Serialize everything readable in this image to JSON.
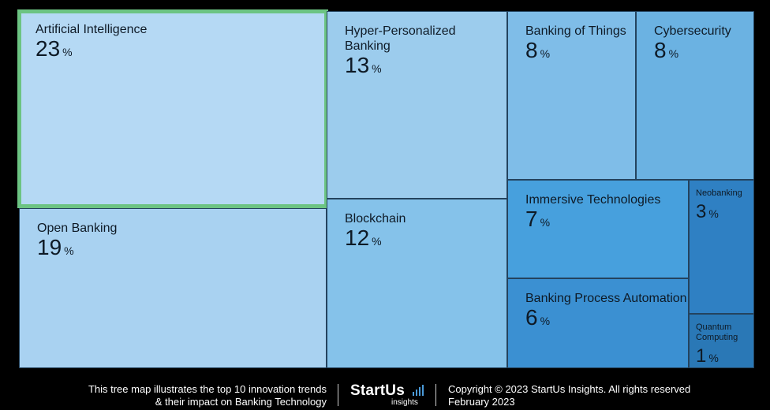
{
  "chart_data": {
    "type": "treemap",
    "unit": "%",
    "items": [
      {
        "name": "Artificial Intelligence",
        "value": 23,
        "color": "#b5d9f4",
        "highlight": true
      },
      {
        "name": "Open Banking",
        "value": 19,
        "color": "#a9d2f1"
      },
      {
        "name": "Hyper-Personalized\nBanking",
        "value": 13,
        "color": "#9ccced"
      },
      {
        "name": "Blockchain",
        "value": 12,
        "color": "#85c2ea"
      },
      {
        "name": "Banking of Things",
        "value": 8,
        "color": "#7fbde8"
      },
      {
        "name": "Cybersecurity",
        "value": 8,
        "color": "#6bb2e2"
      },
      {
        "name": "Immersive Technologies",
        "value": 7,
        "color": "#47a0dd"
      },
      {
        "name": "Banking Process Automation",
        "value": 6,
        "color": "#3b90d2"
      },
      {
        "name": "Neobanking",
        "value": 3,
        "color": "#2f80c3"
      },
      {
        "name": "Quantum\nComputing",
        "value": 1,
        "color": "#2a78b6"
      }
    ],
    "highlight_color": "#6cc483"
  },
  "footer": {
    "description_line1": "This tree map illustrates the top 10 innovation trends",
    "description_line2": "& their impact on Banking Technology",
    "brand": "StartUs",
    "brand_sub": "insights",
    "copyright_line1": "Copyright © 2023 StartUs Insights. All rights reserved",
    "copyright_line2": "February 2023"
  }
}
